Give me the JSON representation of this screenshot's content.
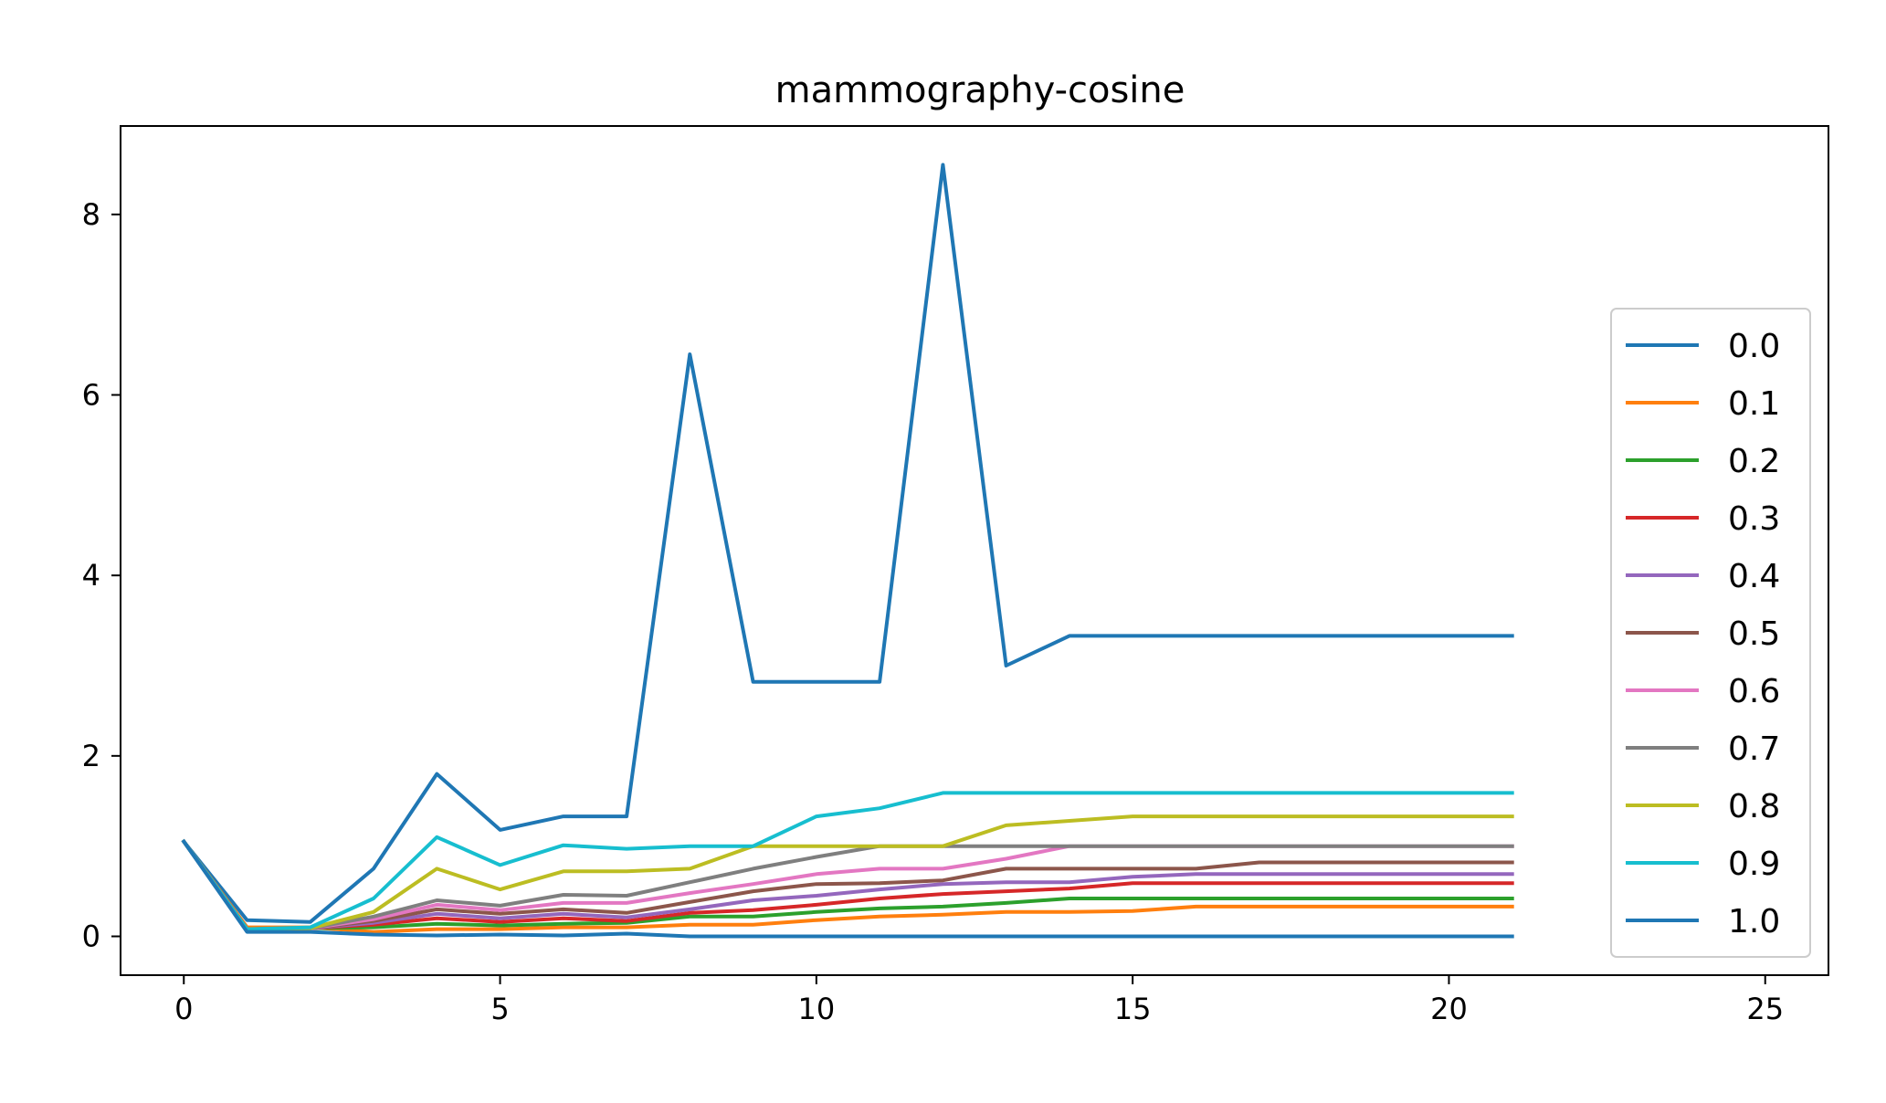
{
  "chart_data": {
    "type": "line",
    "title": "mammography-cosine",
    "xlabel": "",
    "ylabel": "",
    "xlim": [
      -1,
      26
    ],
    "ylim": [
      -0.43,
      8.98
    ],
    "xticks": [
      0,
      5,
      10,
      15,
      20,
      25
    ],
    "yticks": [
      0,
      2,
      4,
      6,
      8
    ],
    "grid": false,
    "legend_position": "lower-right",
    "x": [
      0,
      1,
      2,
      3,
      4,
      5,
      6,
      7,
      8,
      9,
      10,
      11,
      12,
      13,
      14,
      15,
      16,
      17,
      18,
      19,
      20,
      21
    ],
    "series": [
      {
        "name": "0.0",
        "color": "#1f77b4",
        "values": [
          1.05,
          0.18,
          0.16,
          0.75,
          1.8,
          1.18,
          1.33,
          1.33,
          6.45,
          2.82,
          2.82,
          2.82,
          8.55,
          3.0,
          3.33,
          3.33,
          3.33,
          3.33,
          3.33,
          3.33,
          3.33,
          3.33
        ]
      },
      {
        "name": "0.1",
        "color": "#ff7f0e",
        "values": [
          1.05,
          0.1,
          0.1,
          0.05,
          0.08,
          0.08,
          0.1,
          0.1,
          0.13,
          0.13,
          0.18,
          0.22,
          0.24,
          0.27,
          0.27,
          0.28,
          0.33,
          0.33,
          0.33,
          0.33,
          0.33,
          0.33
        ]
      },
      {
        "name": "0.2",
        "color": "#2ca02c",
        "values": [
          1.05,
          0.08,
          0.09,
          0.1,
          0.14,
          0.12,
          0.14,
          0.15,
          0.22,
          0.22,
          0.27,
          0.31,
          0.33,
          0.37,
          0.42,
          0.42,
          0.42,
          0.42,
          0.42,
          0.42,
          0.42,
          0.42
        ]
      },
      {
        "name": "0.3",
        "color": "#d62728",
        "values": [
          1.05,
          0.08,
          0.09,
          0.13,
          0.2,
          0.16,
          0.2,
          0.17,
          0.26,
          0.29,
          0.35,
          0.42,
          0.47,
          0.5,
          0.53,
          0.59,
          0.59,
          0.59,
          0.59,
          0.59,
          0.59,
          0.59
        ]
      },
      {
        "name": "0.4",
        "color": "#9467bd",
        "values": [
          1.05,
          0.08,
          0.09,
          0.15,
          0.25,
          0.2,
          0.25,
          0.21,
          0.3,
          0.4,
          0.45,
          0.52,
          0.58,
          0.6,
          0.6,
          0.66,
          0.69,
          0.69,
          0.69,
          0.69,
          0.69,
          0.69
        ]
      },
      {
        "name": "0.5",
        "color": "#8c564b",
        "values": [
          1.05,
          0.07,
          0.09,
          0.17,
          0.3,
          0.25,
          0.3,
          0.26,
          0.38,
          0.5,
          0.58,
          0.59,
          0.62,
          0.75,
          0.75,
          0.75,
          0.75,
          0.82,
          0.82,
          0.82,
          0.82,
          0.82
        ]
      },
      {
        "name": "0.6",
        "color": "#e377c2",
        "values": [
          1.05,
          0.07,
          0.09,
          0.19,
          0.35,
          0.29,
          0.37,
          0.37,
          0.48,
          0.58,
          0.69,
          0.75,
          0.75,
          0.86,
          1.0,
          1.0,
          1.0,
          1.0,
          1.0,
          1.0,
          1.0,
          1.0
        ]
      },
      {
        "name": "0.7",
        "color": "#7f7f7f",
        "values": [
          1.05,
          0.07,
          0.09,
          0.22,
          0.4,
          0.34,
          0.46,
          0.45,
          0.6,
          0.75,
          0.88,
          1.0,
          1.0,
          1.0,
          1.0,
          1.0,
          1.0,
          1.0,
          1.0,
          1.0,
          1.0,
          1.0
        ]
      },
      {
        "name": "0.8",
        "color": "#bcbd22",
        "values": [
          1.05,
          0.07,
          0.09,
          0.27,
          0.75,
          0.52,
          0.72,
          0.72,
          0.75,
          1.0,
          1.0,
          1.0,
          1.0,
          1.23,
          1.28,
          1.33,
          1.33,
          1.33,
          1.33,
          1.33,
          1.33,
          1.33
        ]
      },
      {
        "name": "0.9",
        "color": "#17becf",
        "values": [
          1.05,
          0.08,
          0.1,
          0.42,
          1.1,
          0.79,
          1.01,
          0.97,
          1.0,
          1.0,
          1.33,
          1.42,
          1.59,
          1.59,
          1.59,
          1.59,
          1.59,
          1.59,
          1.59,
          1.59,
          1.59,
          1.59
        ]
      },
      {
        "name": "1.0",
        "color": "#1f77b4",
        "values": [
          1.05,
          0.05,
          0.05,
          0.02,
          0.01,
          0.02,
          0.01,
          0.03,
          0.0,
          0.0,
          0.0,
          0.0,
          0.0,
          0.0,
          0.0,
          0.0,
          0.0,
          0.0,
          0.0,
          0.0,
          0.0,
          0.0
        ]
      }
    ]
  }
}
